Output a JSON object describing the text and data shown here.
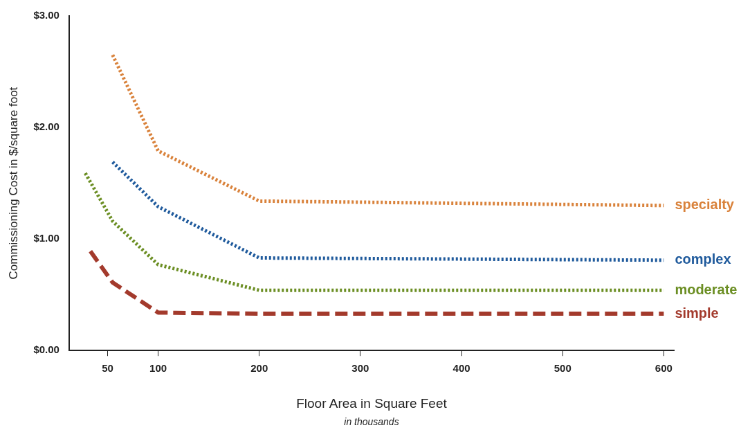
{
  "chart_data": {
    "type": "line",
    "xlabel": "Floor Area in Square Feet",
    "ylabel": "Commissioning Cost in $/square foot",
    "annotations": [
      "in thousands"
    ],
    "xlim": [
      12,
      610
    ],
    "xticks": [
      50,
      100,
      200,
      300,
      400,
      500,
      600
    ],
    "ylim": [
      0,
      3
    ],
    "yticks": [
      {
        "value": 0,
        "label": "$0.00"
      },
      {
        "value": 1,
        "label": "$1.00"
      },
      {
        "value": 2,
        "label": "$2.00"
      },
      {
        "value": 3,
        "label": "$3.00"
      }
    ],
    "grid": false,
    "legend": false,
    "marker": "none",
    "series": [
      {
        "name": "specialty",
        "color": "#d9823b",
        "line_style": "dotted",
        "x": [
          55,
          100,
          200,
          600
        ],
        "values": [
          2.65,
          1.79,
          1.34,
          1.3
        ]
      },
      {
        "name": "complex",
        "color": "#1f5a9c",
        "line_style": "dotted",
        "x": [
          55,
          100,
          200,
          600
        ],
        "values": [
          1.69,
          1.29,
          0.83,
          0.81
        ]
      },
      {
        "name": "moderate",
        "color": "#6b8e23",
        "line_style": "dotted",
        "x": [
          28,
          55,
          100,
          200,
          600
        ],
        "values": [
          1.59,
          1.16,
          0.77,
          0.54,
          0.54
        ]
      },
      {
        "name": "simple",
        "color": "#a33a2c",
        "line_style": "dashed",
        "x": [
          33,
          55,
          100,
          200,
          600
        ],
        "values": [
          0.89,
          0.61,
          0.34,
          0.33,
          0.33
        ]
      }
    ]
  }
}
